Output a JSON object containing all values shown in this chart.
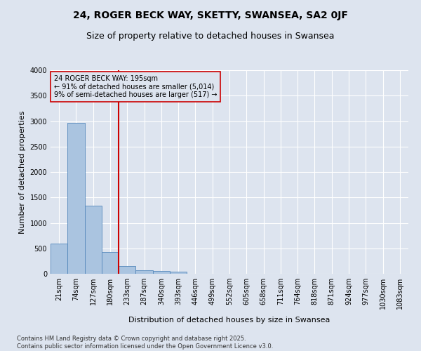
{
  "title": "24, ROGER BECK WAY, SKETTY, SWANSEA, SA2 0JF",
  "subtitle": "Size of property relative to detached houses in Swansea",
  "xlabel": "Distribution of detached houses by size in Swansea",
  "ylabel": "Number of detached properties",
  "categories": [
    "21sqm",
    "74sqm",
    "127sqm",
    "180sqm",
    "233sqm",
    "287sqm",
    "340sqm",
    "393sqm",
    "446sqm",
    "499sqm",
    "552sqm",
    "605sqm",
    "658sqm",
    "711sqm",
    "764sqm",
    "818sqm",
    "871sqm",
    "924sqm",
    "977sqm",
    "1030sqm",
    "1083sqm"
  ],
  "values": [
    590,
    2960,
    1340,
    430,
    150,
    75,
    50,
    40,
    0,
    0,
    0,
    0,
    0,
    0,
    0,
    0,
    0,
    0,
    0,
    0,
    0
  ],
  "bar_color": "#aac4e0",
  "bar_edge_color": "#5588bb",
  "bg_color": "#dde4ef",
  "grid_color": "#ffffff",
  "annotation_box_color": "#cc0000",
  "vline_color": "#cc0000",
  "vline_x": 3.5,
  "annotation_text_line1": "24 ROGER BECK WAY: 195sqm",
  "annotation_text_line2": "← 91% of detached houses are smaller (5,014)",
  "annotation_text_line3": "9% of semi-detached houses are larger (517) →",
  "footer": "Contains HM Land Registry data © Crown copyright and database right 2025.\nContains public sector information licensed under the Open Government Licence v3.0.",
  "ylim": [
    0,
    4000
  ],
  "yticks": [
    0,
    500,
    1000,
    1500,
    2000,
    2500,
    3000,
    3500,
    4000
  ],
  "title_fontsize": 10,
  "subtitle_fontsize": 9,
  "axis_fontsize": 8,
  "tick_fontsize": 7,
  "annotation_fontsize": 7,
  "footer_fontsize": 6
}
